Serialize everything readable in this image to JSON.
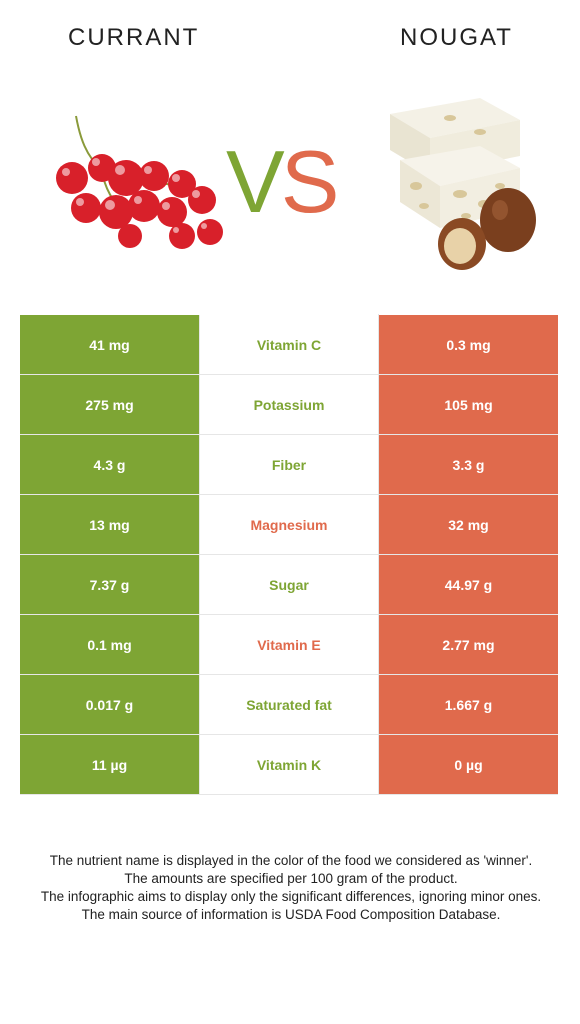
{
  "header": {
    "left_food": "CURRANT",
    "right_food": "NOUGAT",
    "vs_v": "V",
    "vs_s": "S"
  },
  "colors": {
    "left": "#7ea534",
    "right": "#e06a4c"
  },
  "rows": [
    {
      "left": "41 mg",
      "nutrient": "Vitamin C",
      "right": "0.3 mg",
      "winner": "left"
    },
    {
      "left": "275 mg",
      "nutrient": "Potassium",
      "right": "105 mg",
      "winner": "left"
    },
    {
      "left": "4.3 g",
      "nutrient": "Fiber",
      "right": "3.3 g",
      "winner": "left"
    },
    {
      "left": "13 mg",
      "nutrient": "Magnesium",
      "right": "32 mg",
      "winner": "right"
    },
    {
      "left": "7.37 g",
      "nutrient": "Sugar",
      "right": "44.97 g",
      "winner": "left"
    },
    {
      "left": "0.1 mg",
      "nutrient": "Vitamin E",
      "right": "2.77 mg",
      "winner": "right"
    },
    {
      "left": "0.017 g",
      "nutrient": "Saturated fat",
      "right": "1.667 g",
      "winner": "left"
    },
    {
      "left": "11 µg",
      "nutrient": "Vitamin K",
      "right": "0 µg",
      "winner": "left"
    }
  ],
  "footnotes": [
    "The nutrient name is displayed in the color of the food we considered as 'winner'.",
    "The amounts are specified per 100 gram of the product.",
    "The infographic aims to display only the significant differences, ignoring minor ones.",
    "The main source of information is USDA Food Composition Database."
  ]
}
